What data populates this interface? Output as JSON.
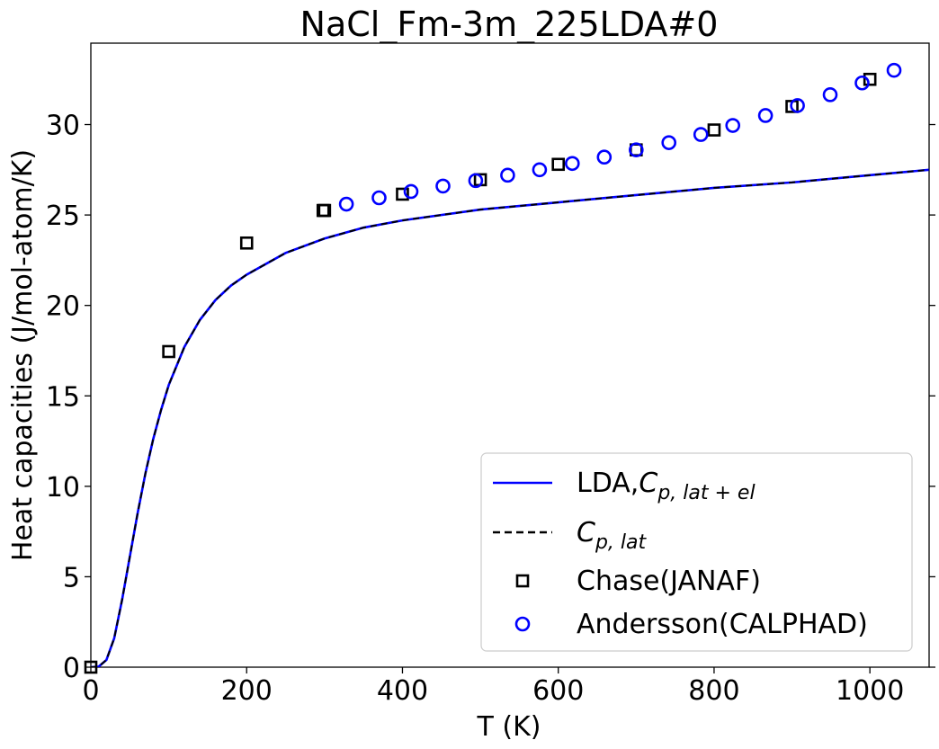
{
  "chart_data": {
    "type": "scatter",
    "title": "NaCl_Fm-3m_225LDA#0",
    "xlabel": "T (K)",
    "ylabel": "Heat capacities (J/mol-atom/K)",
    "xlim": [
      0,
      1076
    ],
    "ylim": [
      0,
      34.5
    ],
    "xticks": [
      0,
      200,
      400,
      600,
      800,
      1000
    ],
    "yticks": [
      0,
      5,
      10,
      15,
      20,
      25,
      30
    ],
    "grid": false,
    "legend_position": "bottom-right",
    "colors": {
      "line_total": "#0000ff",
      "line_lat": "#000000",
      "chase": "#000000",
      "andersson": "#0000ff"
    },
    "legend": [
      {
        "label": "LDA,",
        "math": "C",
        "sub": "p, lat + el",
        "style": "solid-line",
        "color": "#0000ff"
      },
      {
        "label": "",
        "math": "C",
        "sub": "p, lat",
        "style": "dashed-line",
        "color": "#000000"
      },
      {
        "label": "Chase(JANAF)",
        "style": "square",
        "color": "#000000"
      },
      {
        "label": "Andersson(CALPHAD)",
        "style": "circle",
        "color": "#0000ff"
      }
    ],
    "series": [
      {
        "name": "LDA,Cp,lat+el",
        "kind": "line",
        "style": "solid",
        "x": [
          0,
          10,
          20,
          30,
          40,
          50,
          60,
          70,
          80,
          90,
          100,
          120,
          140,
          160,
          180,
          200,
          250,
          300,
          350,
          400,
          500,
          600,
          700,
          800,
          900,
          1000,
          1076
        ],
        "y": [
          0,
          0.03,
          0.4,
          1.6,
          3.7,
          6.1,
          8.5,
          10.7,
          12.6,
          14.2,
          15.6,
          17.7,
          19.2,
          20.3,
          21.1,
          21.7,
          22.9,
          23.7,
          24.3,
          24.7,
          25.3,
          25.7,
          26.1,
          26.5,
          26.8,
          27.2,
          27.5
        ]
      },
      {
        "name": "Cp,lat",
        "kind": "line",
        "style": "dashed",
        "x": [
          0,
          10,
          20,
          30,
          40,
          50,
          60,
          70,
          80,
          90,
          100,
          120,
          140,
          160,
          180,
          200,
          250,
          300,
          350,
          400,
          500,
          600,
          700,
          800,
          900,
          1000,
          1076
        ],
        "y": [
          0,
          0.03,
          0.4,
          1.6,
          3.7,
          6.1,
          8.5,
          10.7,
          12.6,
          14.2,
          15.6,
          17.7,
          19.2,
          20.3,
          21.1,
          21.7,
          22.9,
          23.7,
          24.3,
          24.7,
          25.3,
          25.7,
          26.1,
          26.5,
          26.8,
          27.2,
          27.5
        ]
      },
      {
        "name": "Chase(JANAF)",
        "kind": "scatter",
        "marker": "square",
        "x": [
          0,
          100,
          200,
          298.15,
          300,
          400,
          500,
          600,
          700,
          800,
          900,
          1000
        ],
        "y": [
          0,
          17.45,
          23.45,
          25.25,
          25.25,
          26.15,
          26.95,
          27.8,
          28.6,
          29.7,
          31.0,
          32.5
        ]
      },
      {
        "name": "Andersson(CALPHAD)",
        "kind": "scatter",
        "marker": "circle",
        "x": [
          328,
          370,
          411,
          452,
          494,
          535,
          576,
          618,
          659,
          700,
          742,
          783,
          824,
          866,
          907,
          949,
          990,
          1031
        ],
        "y": [
          25.6,
          25.95,
          26.3,
          26.6,
          26.9,
          27.2,
          27.5,
          27.85,
          28.2,
          28.6,
          29.0,
          29.45,
          29.95,
          30.5,
          31.05,
          31.65,
          32.3,
          33.0
        ]
      }
    ]
  }
}
